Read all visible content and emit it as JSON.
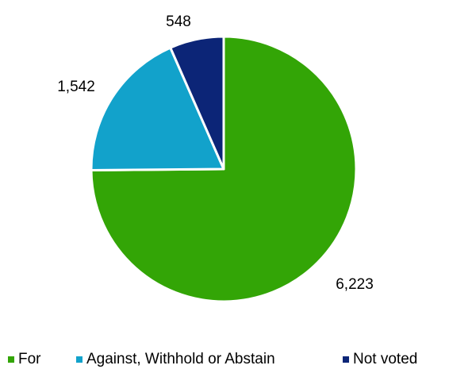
{
  "chart_data": {
    "type": "pie",
    "title": "",
    "labels": [
      "For",
      "Against, Withhold or Abstain",
      "Not voted"
    ],
    "values": [
      6223,
      1542,
      548
    ],
    "value_labels": [
      "6,223",
      "1,542",
      "548"
    ],
    "colors": [
      "#33A506",
      "#12A2CB",
      "#0C2577"
    ],
    "legend_position": "bottom",
    "start_angle_deg": 0,
    "direction": "clockwise"
  }
}
